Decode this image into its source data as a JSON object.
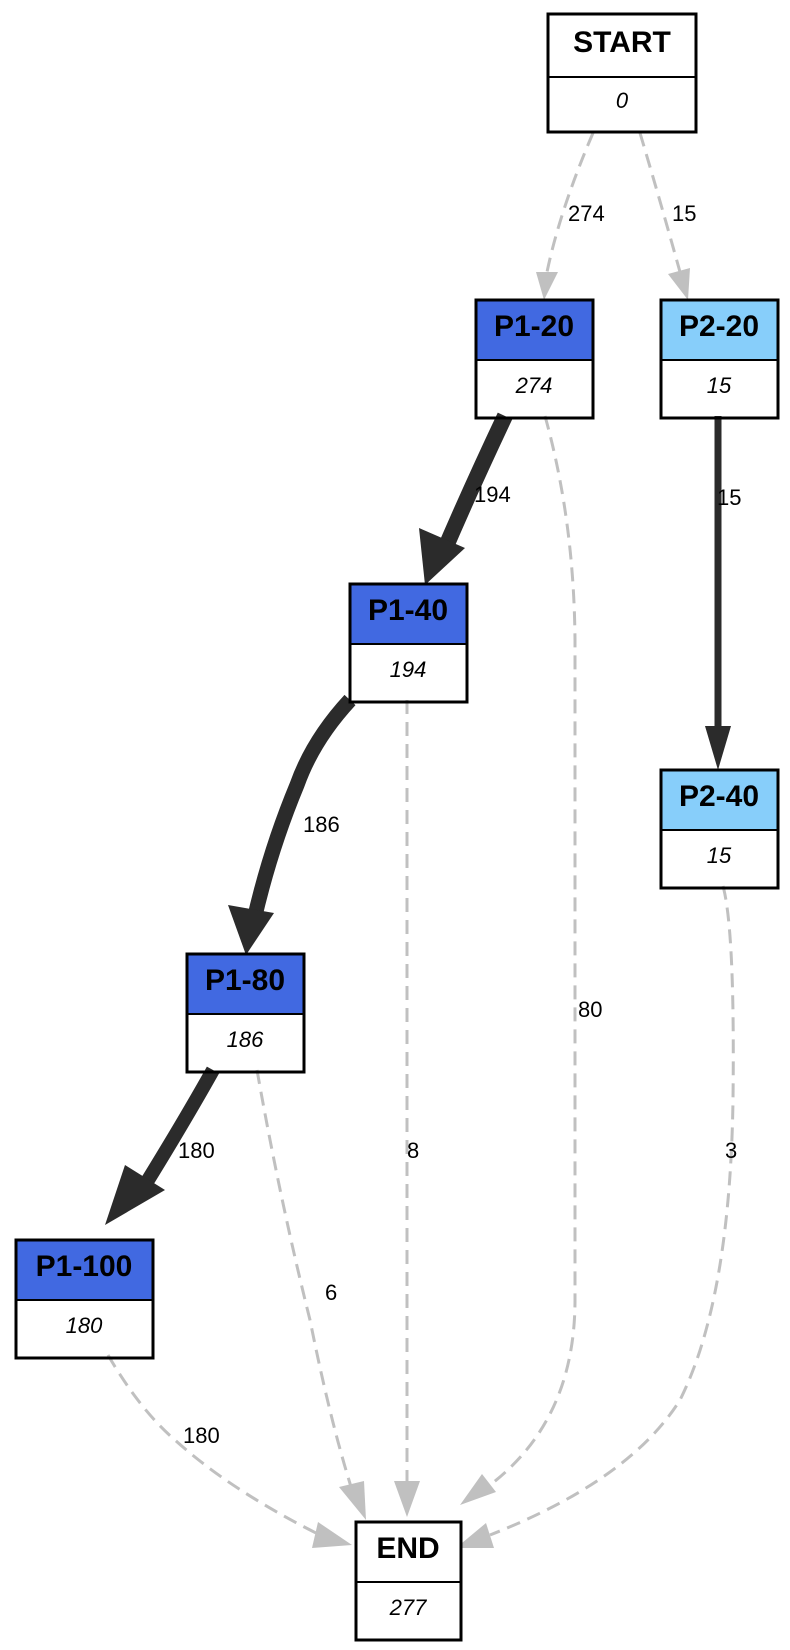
{
  "nodes": {
    "start": {
      "title": "START",
      "value": "0",
      "color": "#ffffff"
    },
    "p1_20": {
      "title": "P1-20",
      "value": "274",
      "color": "#4169e1"
    },
    "p2_20": {
      "title": "P2-20",
      "value": "15",
      "color": "#87cefa"
    },
    "p1_40": {
      "title": "P1-40",
      "value": "194",
      "color": "#4169e1"
    },
    "p2_40": {
      "title": "P2-40",
      "value": "15",
      "color": "#87cefa"
    },
    "p1_80": {
      "title": "P1-80",
      "value": "186",
      "color": "#4169e1"
    },
    "p1_100": {
      "title": "P1-100",
      "value": "180",
      "color": "#4169e1"
    },
    "end": {
      "title": "END",
      "value": "277",
      "color": "#ffffff"
    }
  },
  "edges": {
    "start_p1_20": {
      "label": "274",
      "style": "dashed"
    },
    "start_p2_20": {
      "label": "15",
      "style": "dashed"
    },
    "p1_20_p1_40": {
      "label": "194",
      "style": "solid"
    },
    "p1_20_end": {
      "label": "80",
      "style": "dashed"
    },
    "p2_20_p2_40": {
      "label": "15",
      "style": "solid"
    },
    "p1_40_p1_80": {
      "label": "186",
      "style": "solid"
    },
    "p1_40_end": {
      "label": "8",
      "style": "dashed"
    },
    "p2_40_end": {
      "label": "3",
      "style": "dashed"
    },
    "p1_80_p1_100": {
      "label": "180",
      "style": "solid"
    },
    "p1_80_end": {
      "label": "6",
      "style": "dashed"
    },
    "p1_100_end": {
      "label": "180",
      "style": "dashed"
    }
  },
  "colors": {
    "solid_edge": "#2b2b2b",
    "dashed_edge": "#c0c0c0",
    "border": "#000000"
  }
}
